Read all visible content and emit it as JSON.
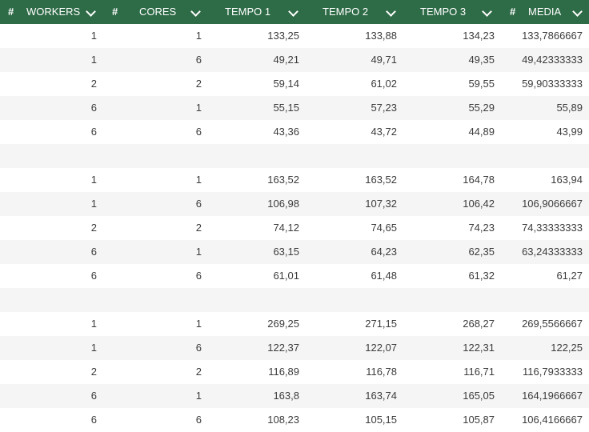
{
  "header": {
    "hash": "#",
    "workers": "WORKERS",
    "cores": "CORES",
    "tempo1": "TEMPO 1",
    "tempo2": "TEMPO 2",
    "tempo3": "TEMPO 3",
    "media": "MEDIA"
  },
  "rows": [
    {
      "workers": "1",
      "cores": "1",
      "t1": "133,25",
      "t2": "133,88",
      "t3": "134,23",
      "media": "133,7866667"
    },
    {
      "workers": "1",
      "cores": "6",
      "t1": "49,21",
      "t2": "49,71",
      "t3": "49,35",
      "media": "49,42333333"
    },
    {
      "workers": "2",
      "cores": "2",
      "t1": "59,14",
      "t2": "61,02",
      "t3": "59,55",
      "media": "59,90333333"
    },
    {
      "workers": "6",
      "cores": "1",
      "t1": "55,15",
      "t2": "57,23",
      "t3": "55,29",
      "media": "55,89"
    },
    {
      "workers": "6",
      "cores": "6",
      "t1": "43,36",
      "t2": "43,72",
      "t3": "44,89",
      "media": "43,99"
    },
    {
      "workers": "",
      "cores": "",
      "t1": "",
      "t2": "",
      "t3": "",
      "media": ""
    },
    {
      "workers": "1",
      "cores": "1",
      "t1": "163,52",
      "t2": "163,52",
      "t3": "164,78",
      "media": "163,94"
    },
    {
      "workers": "1",
      "cores": "6",
      "t1": "106,98",
      "t2": "107,32",
      "t3": "106,42",
      "media": "106,9066667"
    },
    {
      "workers": "2",
      "cores": "2",
      "t1": "74,12",
      "t2": "74,65",
      "t3": "74,23",
      "media": "74,33333333"
    },
    {
      "workers": "6",
      "cores": "1",
      "t1": "63,15",
      "t2": "64,23",
      "t3": "62,35",
      "media": "63,24333333"
    },
    {
      "workers": "6",
      "cores": "6",
      "t1": "61,01",
      "t2": "61,48",
      "t3": "61,32",
      "media": "61,27"
    },
    {
      "workers": "",
      "cores": "",
      "t1": "",
      "t2": "",
      "t3": "",
      "media": ""
    },
    {
      "workers": "1",
      "cores": "1",
      "t1": "269,25",
      "t2": "271,15",
      "t3": "268,27",
      "media": "269,5566667"
    },
    {
      "workers": "1",
      "cores": "6",
      "t1": "122,37",
      "t2": "122,07",
      "t3": "122,31",
      "media": "122,25"
    },
    {
      "workers": "2",
      "cores": "2",
      "t1": "116,89",
      "t2": "116,78",
      "t3": "116,71",
      "media": "116,7933333"
    },
    {
      "workers": "6",
      "cores": "1",
      "t1": "163,8",
      "t2": "163,74",
      "t3": "165,05",
      "media": "164,1966667"
    },
    {
      "workers": "6",
      "cores": "6",
      "t1": "108,23",
      "t2": "105,15",
      "t3": "105,87",
      "media": "106,4166667"
    }
  ]
}
